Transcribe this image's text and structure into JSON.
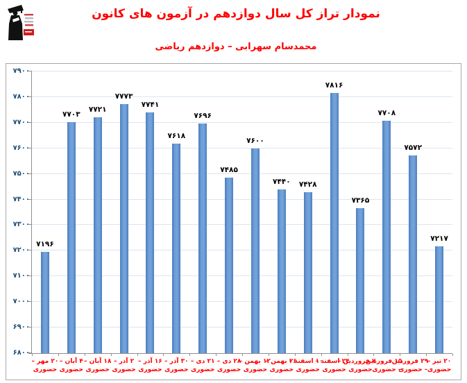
{
  "header": {
    "logo_name": "kanoon-ghalamchi-logo",
    "title": "نمودار تراز کل سال دوازدهم در آزمون های کانون",
    "subtitle": "محمدسام سهرابی – دوازدهم ریاضی",
    "title_color": "#ff0000"
  },
  "chart_data": {
    "type": "bar",
    "title": "نمودار تراز کل سال دوازدهم در آزمون های کانون",
    "subtitle": "محمدسام سهرابی – دوازدهم ریاضی",
    "categories": [
      "۲۰ مهر – حضوری",
      "۴ آبان – حضوری",
      "۱۸ آبان – حضوری",
      "۲ آذر – حضوری",
      "۱۶ آذر – حضوری",
      "۳۰ آذر – حضوری",
      "۲۱ دی – حضوری",
      "۲۸ دی – حضوری",
      "۱۲ بهمن – حضوری",
      "۲۶ بهمن – حضوری",
      "۱۰ اسفند – حضوری",
      "۲۴ اسفند – حضوری",
      "۷ فروردین – حضوری",
      "۱۵ فروردین – حضوری",
      "۲۹ فروردین – حضوری",
      "۲۰ تیر – حضوری"
    ],
    "category_lines": [
      [
        "۲۰ مهر –",
        "حضوری"
      ],
      [
        "۴ آبان –",
        "حضوری"
      ],
      [
        "۱۸ آبان –",
        "حضوری"
      ],
      [
        "۲ آذر –",
        "حضوری"
      ],
      [
        "۱۶ آذر –",
        "حضوری"
      ],
      [
        "۳۰ آذر –",
        "حضوری"
      ],
      [
        "۲۱ دی –",
        "حضوری"
      ],
      [
        "۲۸ دی –",
        "حضوری"
      ],
      [
        "۱۲ بهمن –",
        "حضوری"
      ],
      [
        "۲۶ بهمن –",
        "حضوری"
      ],
      [
        "۱۰ اسفند –",
        "حضوری"
      ],
      [
        "۲۴ اسفند –",
        "حضوری"
      ],
      [
        "۷ فروردین –",
        "حضوری"
      ],
      [
        "۱۵ فروردین",
        "– حضوری"
      ],
      [
        "۲۹ فروردین",
        "– حضوری"
      ],
      [
        "۲۰ تیر –",
        "حضوری"
      ]
    ],
    "values": [
      7196,
      7703,
      7721,
      7773,
      7741,
      7618,
      7696,
      7485,
      7600,
      7440,
      7428,
      7816,
      7365,
      7708,
      7572,
      7217
    ],
    "value_labels_fa": [
      "۷۱۹۶",
      "۷۷۰۳",
      "۷۷۲۱",
      "۷۷۷۳",
      "۷۷۴۱",
      "۷۶۱۸",
      "۷۶۹۶",
      "۷۴۸۵",
      "۷۶۰۰",
      "۷۴۴۰",
      "۷۴۲۸",
      "۷۸۱۶",
      "۷۳۶۵",
      "۷۷۰۸",
      "۷۵۷۲",
      "۷۲۱۷"
    ],
    "ylim": [
      6800,
      7900
    ],
    "ytick_step": 100,
    "yticks": [
      6800,
      6900,
      7000,
      7100,
      7200,
      7300,
      7400,
      7500,
      7600,
      7700,
      7800,
      7900
    ],
    "ytick_labels_fa": [
      "۶۸۰۰",
      "۶۹۰۰",
      "۷۰۰۰",
      "۷۱۰۰",
      "۷۲۰۰",
      "۷۳۰۰",
      "۷۴۰۰",
      "۷۵۰۰",
      "۷۶۰۰",
      "۷۷۰۰",
      "۷۸۰۰",
      "۷۹۰۰"
    ],
    "grid": "horizontal",
    "legend": "none",
    "bar_color": "#5b8fce",
    "gridline_color": "#dbe5f1",
    "value_label_color": "#000000",
    "ytick_label_color": "#1f4e79",
    "xtick_label_color": "#ff0000"
  }
}
